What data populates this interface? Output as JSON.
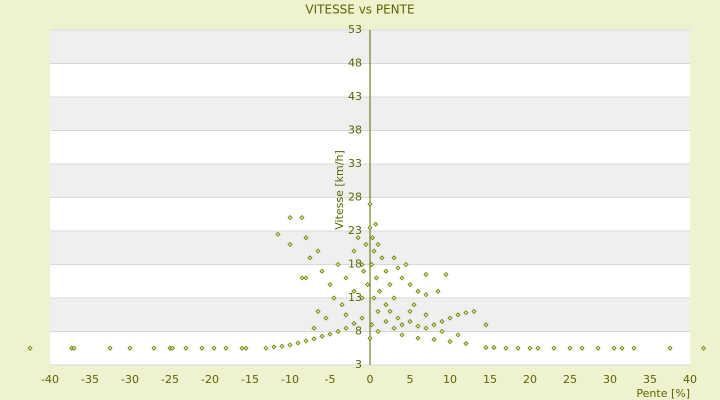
{
  "chart_data": {
    "type": "scatter",
    "title": "VITESSE vs PENTE",
    "x_label": "Pente [%]",
    "y_label": "Vitesse [km/h]",
    "xlim": [
      -40,
      40
    ],
    "ylim": [
      3,
      53
    ],
    "xticks": [
      -40,
      -35,
      -30,
      -25,
      -20,
      -15,
      -10,
      -5,
      0,
      5,
      10,
      15,
      20,
      25,
      30,
      35,
      40
    ],
    "yticks": [
      3,
      8,
      13,
      18,
      23,
      28,
      33,
      38,
      43,
      48,
      53
    ],
    "grid": true,
    "color": "#6b7a00",
    "x": [
      -42.5,
      -37.3,
      -37,
      -32.5,
      -30,
      -27,
      -25,
      -24.7,
      -23,
      -21,
      -19.5,
      -18,
      -16,
      -15.5,
      -13,
      -12,
      -11,
      -10,
      14.5,
      15.5,
      17,
      18.5,
      20,
      21,
      23,
      25,
      26.5,
      28.5,
      30.5,
      31.5,
      33,
      37.5,
      41.7,
      -9,
      -8,
      -7,
      -6,
      -5,
      -4,
      -3,
      -2,
      -1,
      -10,
      -8.5,
      -11.5,
      -10,
      -8,
      -7.5,
      -6.5,
      -8,
      -6,
      -5,
      -4,
      -4.5,
      -3,
      -3.5,
      -2,
      -2,
      -1.5,
      -1,
      -1,
      -5.5,
      -6.5,
      -3,
      -7,
      -8.5,
      0,
      0,
      0.3,
      0.5,
      -0.5,
      0.2,
      0.8,
      -0.3,
      0.5,
      1,
      0.2,
      0,
      1.5,
      2,
      2.5,
      1.2,
      -0.8,
      0.7,
      1,
      3,
      3.5,
      4,
      2,
      3,
      4.5,
      5,
      6,
      7,
      5.5,
      9.5,
      8.5,
      7,
      1,
      2,
      3,
      4,
      5,
      6,
      7,
      8,
      9,
      10,
      11,
      12,
      13,
      14.5,
      4,
      6,
      8,
      10,
      12,
      5,
      7,
      3.5,
      2.5,
      9,
      11
    ],
    "values": [
      5.5,
      5.5,
      5.5,
      5.5,
      5.5,
      5.5,
      5.5,
      5.5,
      5.5,
      5.5,
      5.5,
      5.5,
      5.5,
      5.5,
      5.5,
      5.7,
      5.8,
      6,
      5.6,
      5.6,
      5.5,
      5.5,
      5.5,
      5.5,
      5.5,
      5.5,
      5.5,
      5.5,
      5.5,
      5.5,
      5.5,
      5.5,
      5.5,
      6.3,
      6.6,
      6.9,
      7.3,
      7.6,
      8,
      8.5,
      9.2,
      10,
      25,
      25,
      22.5,
      21,
      22,
      19,
      20,
      16,
      17,
      15,
      18,
      13,
      16,
      12,
      20,
      14,
      22,
      18,
      13,
      10,
      11,
      10.5,
      8.5,
      16,
      27,
      23.5,
      22,
      20,
      21,
      18,
      16,
      15,
      13,
      11,
      9,
      7,
      19,
      17,
      15,
      14,
      17,
      24,
      21,
      19,
      17.5,
      16,
      12,
      13,
      18,
      15,
      14,
      13.5,
      12,
      16.5,
      14,
      16.5,
      8,
      9.5,
      8.5,
      9,
      9.5,
      8.8,
      8.5,
      9,
      9.5,
      10,
      10.5,
      10.8,
      11,
      9,
      7.5,
      7,
      6.8,
      6.5,
      6.2,
      11,
      10.5,
      10,
      11,
      8,
      7.5
    ]
  }
}
